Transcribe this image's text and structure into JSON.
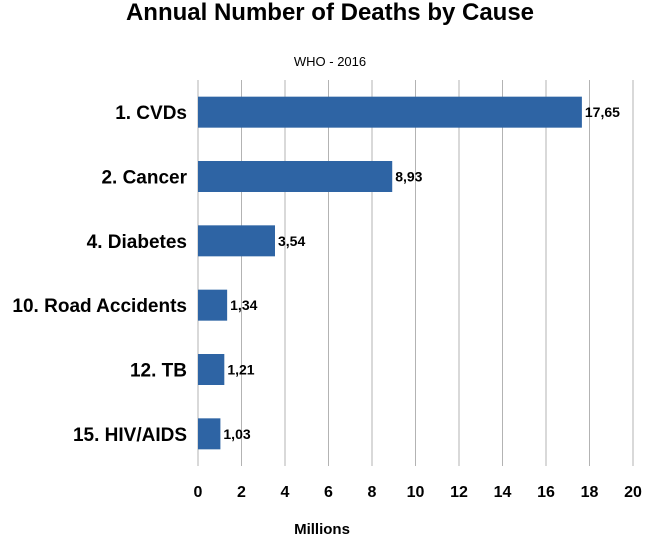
{
  "chart_data": {
    "type": "bar",
    "orientation": "horizontal",
    "title": "Annual Number of Deaths by Cause",
    "subtitle": "WHO - 2016",
    "xlabel": "Millions",
    "ylabel": "",
    "categories": [
      "1. CVDs",
      "2. Cancer",
      "4. Diabetes",
      "10. Road Accidents",
      "12. TB",
      "15. HIV/AIDS"
    ],
    "values": [
      17.65,
      8.93,
      3.54,
      1.34,
      1.21,
      1.03
    ],
    "data_labels": [
      "17,65",
      "8,93",
      "3,54",
      "1,34",
      "1,21",
      "1,03"
    ],
    "xlim": [
      0,
      20
    ],
    "xticks": [
      0,
      2,
      4,
      6,
      8,
      10,
      12,
      14,
      16,
      18,
      20
    ],
    "grid": "vertical",
    "legend": "none",
    "colors": {
      "bar": "#2e64a4",
      "grid": "#b3b3b3",
      "text": "#000000"
    }
  }
}
